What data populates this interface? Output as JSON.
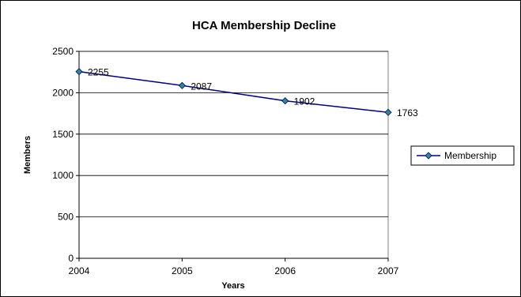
{
  "chart_data": {
    "type": "line",
    "title": "HCA Membership Decline",
    "xlabel": "Years",
    "ylabel": "Members",
    "x": [
      "2004",
      "2005",
      "2006",
      "2007"
    ],
    "series": [
      {
        "name": "Membership",
        "values": [
          2255,
          2087,
          1902,
          1763
        ],
        "data_labels": [
          "2255",
          "2087",
          "1902",
          "1763"
        ],
        "line_color": "#000080",
        "marker_color": "#2E8B8B",
        "marker": "diamond"
      }
    ],
    "ylim": [
      0,
      2500
    ],
    "y_ticks": [
      "0",
      "500",
      "1000",
      "1500",
      "2000",
      "2500"
    ],
    "grid": "horizontal",
    "legend_position": "right"
  }
}
